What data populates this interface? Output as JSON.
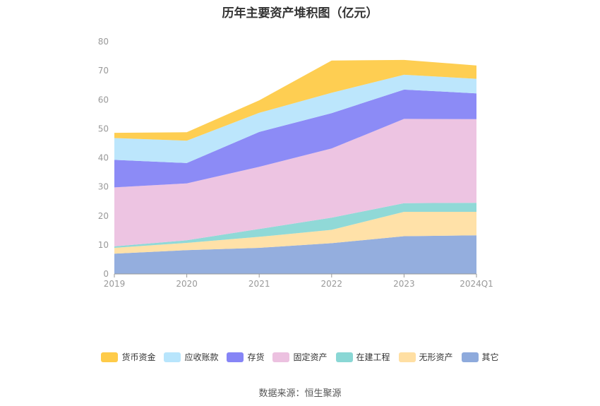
{
  "chart_data": {
    "type": "area",
    "stacked": true,
    "title": "历年主要资产堆积图（亿元）",
    "categories": [
      "2019",
      "2020",
      "2021",
      "2022",
      "2023",
      "2024Q1"
    ],
    "ylim": [
      0,
      80
    ],
    "yticks": [
      0,
      10,
      20,
      30,
      40,
      50,
      60,
      70,
      80
    ],
    "grid": false,
    "legend_position": "bottom",
    "series": [
      {
        "name": "其它",
        "color": "#8eaadc",
        "values": [
          7.0,
          8.2,
          9.0,
          10.6,
          13.0,
          13.3
        ]
      },
      {
        "name": "无形资产",
        "color": "#ffdfa3",
        "values": [
          2.0,
          2.5,
          3.8,
          4.6,
          8.4,
          8.1
        ]
      },
      {
        "name": "在建工程",
        "color": "#8ad7d5",
        "values": [
          0.5,
          0.9,
          2.7,
          4.2,
          3.0,
          3.1
        ]
      },
      {
        "name": "固定资产",
        "color": "#ecc1e0",
        "values": [
          20.3,
          19.6,
          21.4,
          23.8,
          29.0,
          28.8
        ]
      },
      {
        "name": "存货",
        "color": "#8685f6",
        "values": [
          9.5,
          7.0,
          12.0,
          12.2,
          10.1,
          8.9
        ]
      },
      {
        "name": "应收账款",
        "color": "#b8e5fc",
        "values": [
          7.5,
          7.7,
          6.6,
          7.0,
          5.1,
          5.0
        ]
      },
      {
        "name": "货币资金",
        "color": "#fecb49",
        "values": [
          1.8,
          2.9,
          4.3,
          11.1,
          5.1,
          4.6
        ]
      }
    ],
    "legend_order": [
      "货币资金",
      "应收账款",
      "存货",
      "固定资产",
      "在建工程",
      "无形资产",
      "其它"
    ]
  },
  "source": "数据来源：恒生聚源"
}
